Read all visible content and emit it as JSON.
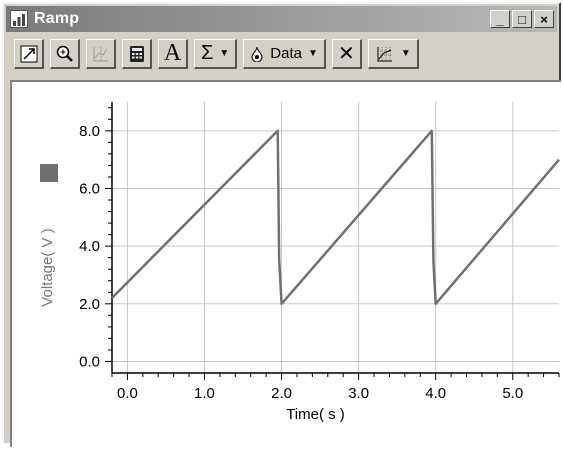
{
  "window": {
    "title": "Ramp",
    "minimize_label": "_",
    "maximize_label": "□",
    "close_label": "×"
  },
  "toolbar": {
    "text_tool_label": "A",
    "sum_label": "Σ",
    "data_label": "Data",
    "delete_label": "✕"
  },
  "chart_data": {
    "type": "line",
    "title": "",
    "xlabel": "Time( s )",
    "ylabel": "Voltage( V )",
    "xlim": [
      -0.2,
      5.6
    ],
    "ylim": [
      -0.4,
      9.0
    ],
    "x_ticks": [
      0.0,
      1.0,
      2.0,
      3.0,
      4.0,
      5.0
    ],
    "x_tick_labels": [
      "0.0",
      "1.0",
      "2.0",
      "3.0",
      "4.0",
      "5.0"
    ],
    "y_ticks": [
      0.0,
      2.0,
      4.0,
      6.0,
      8.0
    ],
    "y_tick_labels": [
      "0.0",
      "2.0",
      "4.0",
      "6.0",
      "8.0"
    ],
    "grid": true,
    "series": [
      {
        "color": "#707070",
        "x": [
          -0.2,
          1.95,
          1.97,
          2.0,
          3.95,
          3.97,
          4.0,
          5.6
        ],
        "y": [
          2.2,
          8.0,
          3.5,
          2.0,
          8.0,
          3.5,
          2.0,
          7.0
        ]
      }
    ]
  }
}
